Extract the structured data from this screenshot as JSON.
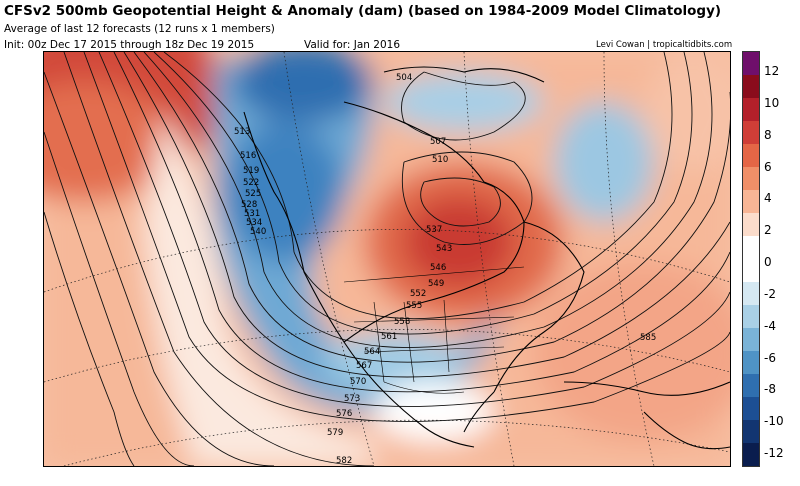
{
  "header": {
    "title": "CFSv2 500mb Geopotential Height & Anomaly (dam) (based on 1984-2009 Model Climatology)",
    "subtitle": "Average of last 12 forecasts (12 runs x 1 members)",
    "init": "Init: 00z Dec 17 2015 through 18z Dec 19 2015",
    "valid": "Valid for: Jan 2016",
    "credit": "Levi Cowan | tropicaltidbits.com"
  },
  "map": {
    "region": "North America and North Pacific",
    "contour_labels": [
      "504",
      "513",
      "516",
      "519",
      "522",
      "525",
      "528",
      "531",
      "534",
      "537",
      "540",
      "543",
      "546",
      "549",
      "552",
      "555",
      "558",
      "561",
      "564",
      "567",
      "570",
      "573",
      "576",
      "579",
      "582",
      "585",
      "507",
      "510"
    ],
    "anomaly_features": [
      {
        "name": "positive-anomaly-north-pacific",
        "sign": "positive"
      },
      {
        "name": "negative-anomaly-gulf-of-alaska",
        "sign": "negative"
      },
      {
        "name": "positive-anomaly-central-canada",
        "sign": "positive"
      },
      {
        "name": "negative-anomaly-southern-us",
        "sign": "negative"
      },
      {
        "name": "positive-anomaly-atlantic",
        "sign": "positive"
      }
    ]
  },
  "colorbar": {
    "ticks": [
      "12",
      "10",
      "8",
      "6",
      "4",
      "2",
      "0",
      "-2",
      "-4",
      "-6",
      "-8",
      "-10",
      "-12"
    ],
    "colors": [
      "#6f0f6b",
      "#8a0c1c",
      "#b3202a",
      "#cf3e37",
      "#e46646",
      "#f08f68",
      "#f7b595",
      "#fbdccb",
      "#ffffff",
      "#ffffff",
      "#d5e8f2",
      "#a9d0e6",
      "#7ab3d7",
      "#4f93c5",
      "#2f6fb0",
      "#1c4f94",
      "#123571",
      "#0a1d4e"
    ]
  }
}
